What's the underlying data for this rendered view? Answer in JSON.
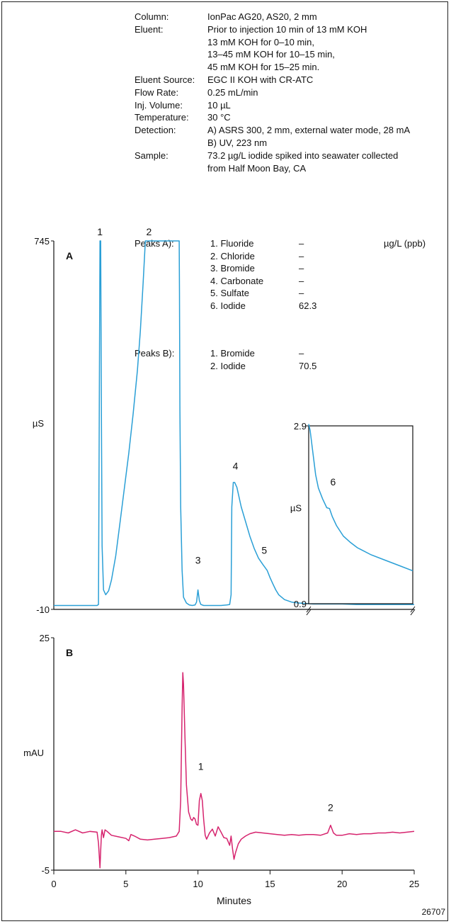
{
  "conditions": [
    {
      "label": "Column:",
      "lines": [
        "IonPac AG20, AS20, 2 mm"
      ]
    },
    {
      "label": "Eluent:",
      "lines": [
        "Prior to injection 10 min of 13 mM KOH",
        "13 mM KOH for 0–10 min,",
        "13–45 mM KOH for 10–15 min,",
        "45 mM KOH for 15–25 min."
      ]
    },
    {
      "label": "Eluent Source:",
      "lines": [
        "EGC II KOH  with CR-ATC"
      ]
    },
    {
      "label": "Flow Rate:",
      "lines": [
        "0.25 mL/min"
      ]
    },
    {
      "label": "Inj. Volume:",
      "lines": [
        "10 µL"
      ]
    },
    {
      "label": "Temperature:",
      "lines": [
        "30 °C"
      ]
    },
    {
      "label": "Detection:",
      "lines": [
        "A) ASRS 300, 2 mm, external water mode, 28 mA",
        "B) UV, 223 nm"
      ]
    },
    {
      "label": "Sample:",
      "lines": [
        "73.2 µg/L iodide spiked into seawater collected",
        "from Half Moon Bay, CA"
      ]
    }
  ],
  "peaks_a": {
    "label": "Peaks A):",
    "items": [
      {
        "name": "1.  Fluoride",
        "value": "–",
        "unit": "µg/L (ppb)"
      },
      {
        "name": "2.  Chloride",
        "value": "–",
        "unit": ""
      },
      {
        "name": "3.  Bromide",
        "value": "–",
        "unit": ""
      },
      {
        "name": "4.  Carbonate",
        "value": "–",
        "unit": ""
      },
      {
        "name": "5.  Sulfate",
        "value": "–",
        "unit": ""
      },
      {
        "name": "6.  Iodide",
        "value": "62.3",
        "unit": ""
      }
    ]
  },
  "peaks_b": {
    "label": "Peaks B):",
    "items": [
      {
        "name": "1.  Bromide",
        "value": "–",
        "unit": ""
      },
      {
        "name": "2.  Iodide",
        "value": "70.5",
        "unit": ""
      }
    ]
  },
  "figure_id": "26707",
  "chart_data": [
    {
      "type": "line",
      "panel_label": "A",
      "ylabel": "µS",
      "ylim": [
        -10,
        745
      ],
      "yticks": [
        "745",
        "-10"
      ],
      "xlim": [
        0,
        25
      ],
      "color": "#2a9fd6",
      "peak_labels": [
        {
          "label": "1",
          "x": 3.2,
          "y": 745
        },
        {
          "label": "2",
          "x": 6.6,
          "y": 745
        },
        {
          "label": "3",
          "x": 10.0,
          "y": 72
        },
        {
          "label": "4",
          "x": 12.6,
          "y": 265
        },
        {
          "label": "5",
          "x": 14.6,
          "y": 92
        }
      ],
      "series": [
        {
          "x": [
            0,
            3.0,
            3.1,
            3.2,
            3.25,
            3.3,
            3.35,
            3.45,
            3.6,
            3.8,
            4.0,
            4.3,
            4.6,
            4.9,
            5.2,
            5.5,
            5.8,
            6.0,
            6.2,
            6.35,
            8.7,
            8.72,
            8.75,
            8.8,
            8.9,
            9.0,
            9.2,
            9.4,
            9.6,
            9.8,
            9.9,
            10.0,
            10.1,
            10.2,
            10.4,
            10.8,
            11.2,
            11.6,
            12.0,
            12.2,
            12.3,
            12.35,
            12.45,
            12.55,
            12.7,
            13.0,
            13.3,
            13.6,
            13.9,
            14.2,
            14.5,
            14.8,
            15.0,
            15.2,
            15.4,
            15.6,
            16.0,
            16.5,
            17.0,
            18.0,
            19.0,
            20.0,
            21.0,
            22.0,
            23.0,
            24.0,
            25.0
          ],
          "y": [
            -2,
            -2,
            0,
            745,
            745,
            400,
            120,
            30,
            20,
            28,
            50,
            100,
            170,
            240,
            310,
            390,
            480,
            560,
            660,
            745,
            745,
            640,
            400,
            200,
            70,
            15,
            3,
            -1,
            -2,
            -1,
            5,
            30,
            8,
            0,
            -2,
            -2,
            -2,
            -2,
            -1,
            0,
            20,
            200,
            250,
            250,
            240,
            200,
            170,
            140,
            115,
            95,
            82,
            70,
            55,
            42,
            30,
            20,
            10,
            5,
            3,
            1,
            1,
            1,
            0,
            0,
            0,
            0,
            0
          ]
        }
      ]
    },
    {
      "type": "line",
      "panel_label": "A",
      "inset": true,
      "ylabel": "µS",
      "ylim": [
        0.9,
        2.9
      ],
      "yticks": [
        "2.9",
        "0.9"
      ],
      "xlim": [
        17.5,
        25
      ],
      "color": "#2a9fd6",
      "peak_labels": [
        {
          "label": "6",
          "x": 19.0,
          "y": 2.12
        }
      ],
      "series": [
        {
          "x": [
            17.5,
            17.6,
            17.8,
            18.0,
            18.2,
            18.5,
            18.8,
            19.0,
            19.2,
            19.5,
            20.0,
            20.5,
            21.0,
            22.0,
            23.0,
            24.0,
            25.0
          ],
          "y": [
            2.92,
            2.85,
            2.6,
            2.35,
            2.2,
            2.08,
            1.98,
            1.97,
            1.88,
            1.78,
            1.66,
            1.59,
            1.53,
            1.45,
            1.39,
            1.33,
            1.27
          ]
        }
      ]
    },
    {
      "type": "line",
      "panel_label": "B",
      "xlabel": "Minutes",
      "ylabel": "mAU",
      "ylim": [
        -5,
        25
      ],
      "yticks": [
        "25",
        "-5"
      ],
      "xlim": [
        0,
        25
      ],
      "xticks": [
        0,
        5,
        10,
        15,
        20,
        25
      ],
      "color": "#d6246e",
      "peak_labels": [
        {
          "label": "1",
          "x": 10.2,
          "y": 7.2
        },
        {
          "label": "2",
          "x": 19.2,
          "y": 1.9
        }
      ],
      "series": [
        {
          "x": [
            0,
            0.5,
            1.0,
            1.5,
            2.0,
            2.5,
            3.0,
            3.1,
            3.2,
            3.25,
            3.3,
            3.35,
            3.45,
            3.55,
            3.7,
            4.0,
            4.5,
            5.0,
            5.2,
            5.35,
            5.6,
            6.0,
            6.5,
            7.0,
            7.5,
            8.0,
            8.5,
            8.7,
            8.8,
            8.9,
            8.95,
            9.0,
            9.1,
            9.2,
            9.35,
            9.5,
            9.6,
            9.7,
            9.8,
            9.9,
            10.0,
            10.1,
            10.2,
            10.3,
            10.4,
            10.5,
            10.6,
            10.8,
            11.0,
            11.2,
            11.4,
            11.6,
            11.8,
            12.0,
            12.2,
            12.3,
            12.4,
            12.5,
            12.6,
            12.8,
            13.0,
            13.3,
            13.6,
            14.0,
            14.5,
            15.0,
            15.5,
            16.0,
            16.5,
            17.0,
            17.5,
            18.0,
            18.5,
            19.0,
            19.2,
            19.4,
            19.6,
            20.0,
            20.5,
            21.0,
            21.5,
            22.0,
            22.5,
            23.0,
            23.5,
            24.0,
            24.5,
            25.0
          ],
          "y": [
            0,
            0,
            -0.2,
            0.2,
            -0.2,
            0,
            -0.1,
            -1.5,
            -4.7,
            -2.5,
            -0.5,
            0.2,
            -0.8,
            0.2,
            0,
            -0.5,
            -0.7,
            -0.9,
            -1.2,
            -0.4,
            -0.6,
            -1.0,
            -1.1,
            -1.0,
            -0.9,
            -0.8,
            -0.6,
            0,
            4,
            16,
            20.5,
            19,
            12,
            6,
            2.5,
            1.6,
            1.4,
            1.8,
            1.6,
            0.9,
            0.8,
            4,
            4.9,
            4.0,
            1.5,
            -0.5,
            -1.0,
            -0.2,
            0.3,
            -0.6,
            0.6,
            -0.1,
            -0.8,
            -0.9,
            -1.8,
            -0.6,
            -2.3,
            -3.6,
            -2.8,
            -1.6,
            -1.0,
            -0.6,
            -0.3,
            -0.1,
            -0.2,
            -0.3,
            -0.4,
            -0.5,
            -0.4,
            -0.5,
            -0.4,
            -0.4,
            -0.5,
            -0.2,
            0.8,
            -0.2,
            -0.5,
            -0.5,
            -0.3,
            -0.4,
            -0.3,
            -0.3,
            -0.2,
            -0.2,
            -0.1,
            -0.2,
            -0.1,
            0
          ]
        }
      ]
    }
  ]
}
